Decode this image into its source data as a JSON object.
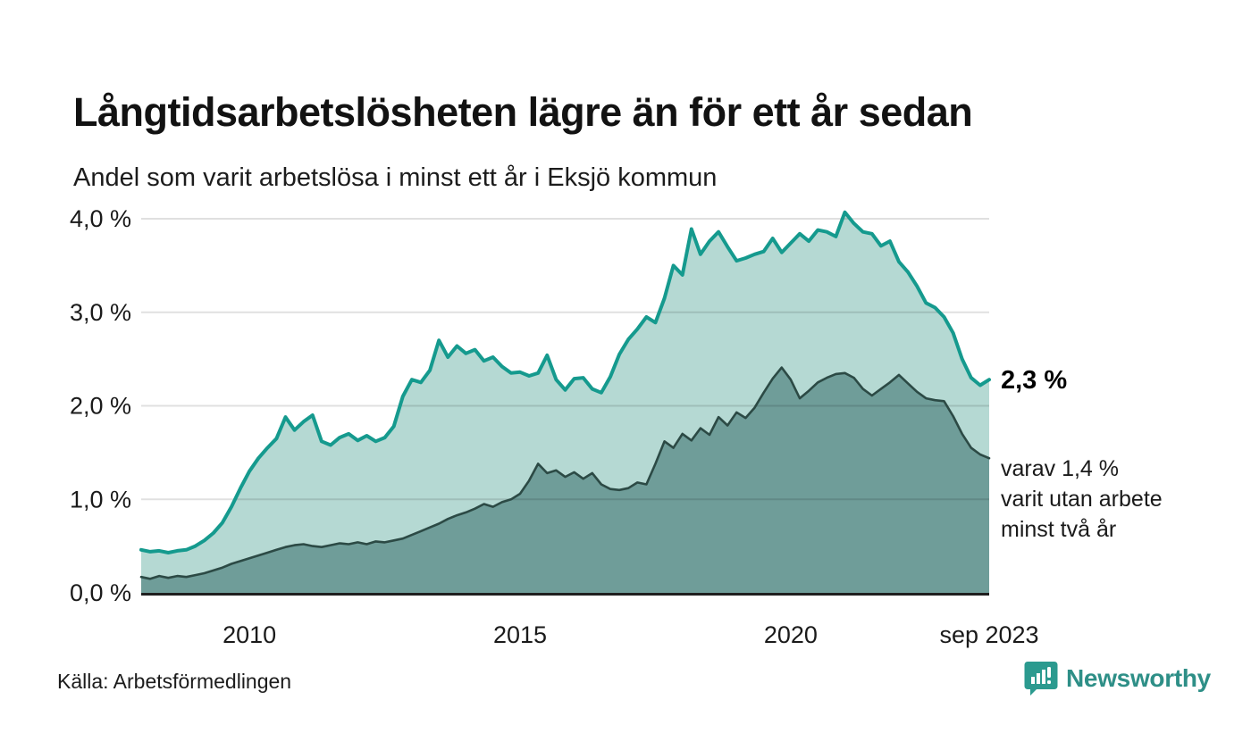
{
  "header": {
    "title": "Långtidsarbetslösheten lägre än för ett år sedan",
    "subtitle": "Andel som varit arbetslösa i minst ett år i Eksjö kommun"
  },
  "annotations": {
    "end_value": "2,3 %",
    "secondary_lines": [
      "varav 1,4 %",
      "varit utan arbete",
      "minst två år"
    ]
  },
  "footer": {
    "source": "Källa: Arbetsförmedlingen",
    "brand": {
      "name": "Newsworthy",
      "color": "#2b9a8f",
      "text_color": "#2e8f87"
    }
  },
  "chart_data": {
    "type": "area",
    "title": "Långtidsarbetslösheten lägre än för ett år sedan",
    "subtitle": "Andel som varit arbetslösa i minst ett år i Eksjö kommun",
    "unit": "%",
    "grid": true,
    "x_domain": {
      "start": "2008-01",
      "end": "2023-09",
      "step_months": 2
    },
    "x_axis": {
      "ticks": [
        {
          "label": "2010",
          "month": 24
        },
        {
          "label": "2015",
          "month": 84
        },
        {
          "label": "2020",
          "month": 144
        },
        {
          "label": "sep 2023",
          "month": 188
        }
      ]
    },
    "y_axis": {
      "min": 0,
      "max": 4.1,
      "unit": "%",
      "ticks": [
        {
          "label": "0,0 %",
          "value": 0
        },
        {
          "label": "1,0 %",
          "value": 1
        },
        {
          "label": "2,0 %",
          "value": 2
        },
        {
          "label": "3,0 %",
          "value": 3
        },
        {
          "label": "4,0 %",
          "value": 4
        }
      ]
    },
    "colors": {
      "line_one_year": "#159a8e",
      "fill_one_year": "#b5d9d3",
      "line_two_years": "#2c4a45",
      "fill_two_years": "#6f9d99",
      "baseline": "#1f1f1f",
      "gridline": "rgba(0,0,0,0.12)"
    },
    "series": [
      {
        "id": "one_year",
        "label": "Andel arbetslösa minst ett år",
        "end_label": "2,3 %",
        "values": [
          0.46,
          0.44,
          0.45,
          0.43,
          0.45,
          0.46,
          0.5,
          0.56,
          0.64,
          0.75,
          0.92,
          1.12,
          1.3,
          1.44,
          1.55,
          1.65,
          1.88,
          1.74,
          1.83,
          1.9,
          1.62,
          1.58,
          1.66,
          1.7,
          1.63,
          1.68,
          1.62,
          1.66,
          1.78,
          2.1,
          2.28,
          2.25,
          2.38,
          2.7,
          2.52,
          2.64,
          2.56,
          2.6,
          2.48,
          2.52,
          2.42,
          2.35,
          2.36,
          2.32,
          2.35,
          2.54,
          2.28,
          2.17,
          2.29,
          2.3,
          2.18,
          2.14,
          2.31,
          2.55,
          2.71,
          2.82,
          2.95,
          2.89,
          3.15,
          3.5,
          3.4,
          3.89,
          3.62,
          3.76,
          3.86,
          3.7,
          3.55,
          3.58,
          3.62,
          3.65,
          3.79,
          3.64,
          3.74,
          3.84,
          3.76,
          3.88,
          3.86,
          3.81,
          4.07,
          3.95,
          3.86,
          3.84,
          3.71,
          3.76,
          3.54,
          3.43,
          3.28,
          3.1,
          3.05,
          2.95,
          2.78,
          2.5,
          2.3,
          2.22,
          2.28
        ]
      },
      {
        "id": "two_years",
        "label": "Varav utan arbete minst två år",
        "end_label": "varav 1,4 % varit utan arbete minst två år",
        "values": [
          0.17,
          0.15,
          0.18,
          0.16,
          0.18,
          0.17,
          0.19,
          0.21,
          0.24,
          0.27,
          0.31,
          0.34,
          0.37,
          0.4,
          0.43,
          0.46,
          0.49,
          0.51,
          0.52,
          0.5,
          0.49,
          0.51,
          0.53,
          0.52,
          0.54,
          0.52,
          0.55,
          0.54,
          0.56,
          0.58,
          0.62,
          0.66,
          0.7,
          0.74,
          0.79,
          0.83,
          0.86,
          0.9,
          0.95,
          0.92,
          0.97,
          1.0,
          1.06,
          1.2,
          1.38,
          1.28,
          1.31,
          1.24,
          1.29,
          1.22,
          1.28,
          1.16,
          1.11,
          1.1,
          1.12,
          1.18,
          1.16,
          1.38,
          1.62,
          1.55,
          1.7,
          1.63,
          1.76,
          1.69,
          1.88,
          1.79,
          1.93,
          1.87,
          1.98,
          2.14,
          2.29,
          2.41,
          2.28,
          2.08,
          2.16,
          2.25,
          2.3,
          2.34,
          2.35,
          2.3,
          2.18,
          2.11,
          2.18,
          2.25,
          2.33,
          2.24,
          2.15,
          2.08,
          2.06,
          2.05,
          1.89,
          1.7,
          1.55,
          1.48,
          1.44
        ]
      }
    ]
  }
}
